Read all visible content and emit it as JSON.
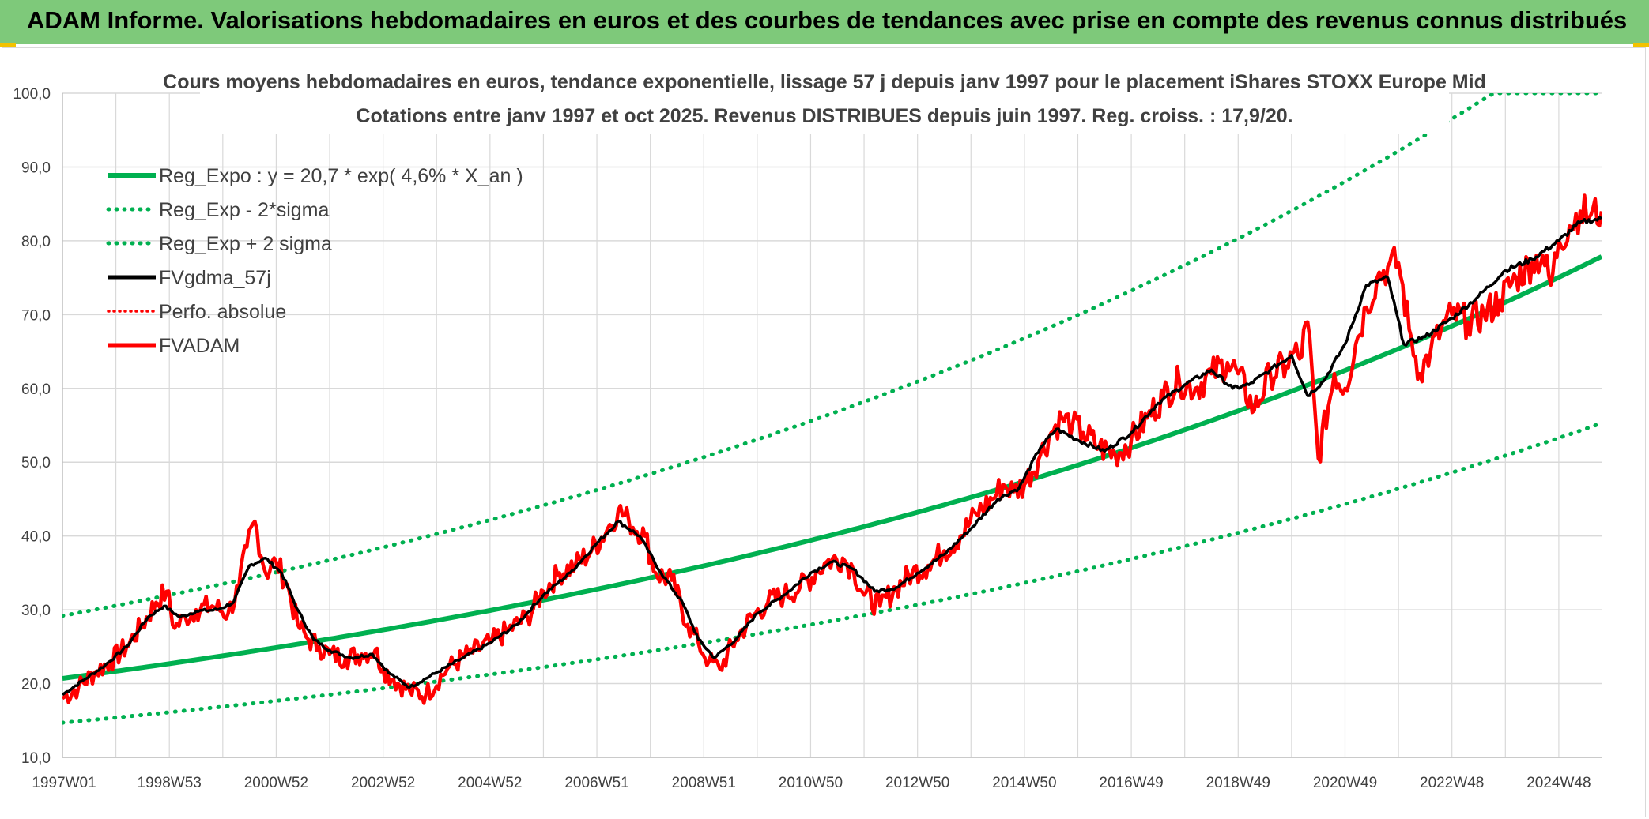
{
  "header": {
    "title": "ADAM Informe. Valorisations hebdomadaires en euros et des courbes de tendances avec prise en compte des revenus connus distribués"
  },
  "colors": {
    "header_bg": "#7ec97a",
    "trend": "#00b050",
    "fv": "#000000",
    "adam": "#ff0000",
    "grid": "#d9d9d9"
  },
  "chart_data": {
    "type": "line",
    "title": "Cours moyens hebdomadaires en euros, tendance exponentielle, lissage 57 j depuis janv 1997 pour le placement iShares STOXX Europe Mid",
    "subtitle": "Cotations entre janv 1997 et oct 2025. Revenus DISTRIBUES depuis juin 1997. Reg. croiss. : 17,9/20.",
    "ylim": [
      10,
      100
    ],
    "yticks": [
      "10,0",
      "20,0",
      "30,0",
      "40,0",
      "50,0",
      "60,0",
      "70,0",
      "80,0",
      "90,0",
      "100,0"
    ],
    "xlim": [
      1997.0,
      2025.8
    ],
    "xtick_labels": [
      "1997W01",
      "1998W53",
      "2000W52",
      "2002W52",
      "2004W52",
      "2006W51",
      "2008W51",
      "2010W50",
      "2012W50",
      "2014W50",
      "2016W49",
      "2018W49",
      "2020W49",
      "2022W48",
      "2024W48"
    ],
    "xtick_years": [
      1997,
      1999,
      2001,
      2003,
      2005,
      2007,
      2009,
      2011,
      2013,
      2015,
      2017,
      2019,
      2021,
      2023,
      2025
    ],
    "legend": [
      {
        "label": "Reg_Expo : y = 20,7 * exp( 4,6% *  X_an )",
        "style": "solid-green"
      },
      {
        "label": "Reg_Exp - 2*sigma",
        "style": "dotted-green"
      },
      {
        "label": "Reg_Exp + 2 sigma",
        "style": "dotted-green"
      },
      {
        "label": "FVgdma_57j",
        "style": "solid-black"
      },
      {
        "label": "Perfo. absolue",
        "style": "dotted-red"
      },
      {
        "label": "FVADAM",
        "style": "solid-red"
      }
    ],
    "regression": {
      "a": 20.7,
      "b": 0.046,
      "x0": 1997.0,
      "lower_factor": 0.71,
      "upper_factor": 1.41
    },
    "series": [
      {
        "name": "FVADAM",
        "x": [
          1997.0,
          1997.3,
          1997.6,
          1997.9,
          1998.2,
          1998.5,
          1998.75,
          1998.95,
          1999.1,
          1999.3,
          1999.5,
          1999.8,
          2000.1,
          2000.3,
          2000.45,
          2000.6,
          2000.8,
          2001.0,
          2001.2,
          2001.4,
          2001.6,
          2001.8,
          2002.0,
          2002.3,
          2002.6,
          2002.85,
          2003.0,
          2003.2,
          2003.5,
          2003.8,
          2004.2,
          2004.6,
          2005.0,
          2005.3,
          2005.7,
          2006.0,
          2006.3,
          2006.6,
          2006.9,
          2007.2,
          2007.4,
          2007.6,
          2007.9,
          2008.1,
          2008.4,
          2008.7,
          2008.9,
          2009.1,
          2009.3,
          2009.6,
          2009.9,
          2010.2,
          2010.5,
          2010.8,
          2011.1,
          2011.3,
          2011.6,
          2011.8,
          2012.0,
          2012.3,
          2012.6,
          2012.9,
          2013.2,
          2013.5,
          2013.8,
          2014.1,
          2014.4,
          2014.6,
          2014.8,
          2015.0,
          2015.3,
          2015.5,
          2015.7,
          2015.9,
          2016.1,
          2016.4,
          2016.7,
          2017.0,
          2017.3,
          2017.6,
          2017.9,
          2018.2,
          2018.5,
          2018.8,
          2019.0,
          2019.3,
          2019.6,
          2019.9,
          2020.05,
          2020.15,
          2020.3,
          2020.5,
          2020.8,
          2021.0,
          2021.2,
          2021.4,
          2021.6,
          2021.8,
          2022.0,
          2022.2,
          2022.4,
          2022.6,
          2022.8,
          2023.0,
          2023.3,
          2023.6,
          2023.9,
          2024.2,
          2024.5,
          2024.7,
          2024.85,
          2025.0,
          2025.2,
          2025.4,
          2025.6,
          2025.8
        ],
        "values": [
          18.0,
          19.5,
          21.5,
          23.0,
          25.0,
          28.0,
          31.0,
          32.5,
          27.5,
          29.0,
          30.0,
          30.5,
          29.5,
          33.0,
          38.5,
          42.0,
          35.0,
          36.5,
          33.5,
          28.0,
          26.0,
          25.0,
          24.0,
          23.5,
          24.0,
          24.5,
          22.0,
          20.5,
          19.0,
          18.5,
          22.0,
          24.0,
          25.5,
          27.0,
          29.0,
          32.5,
          35.0,
          36.0,
          38.0,
          41.0,
          43.5,
          42.0,
          40.0,
          35.0,
          34.0,
          28.0,
          25.5,
          23.0,
          22.0,
          26.0,
          29.0,
          31.0,
          32.0,
          33.0,
          35.0,
          36.5,
          37.0,
          35.5,
          32.0,
          30.5,
          33.0,
          35.0,
          36.0,
          38.0,
          40.0,
          43.0,
          45.0,
          47.0,
          46.0,
          47.0,
          51.0,
          54.0,
          56.0,
          55.0,
          54.0,
          52.0,
          51.0,
          53.0,
          56.0,
          59.0,
          61.0,
          60.0,
          62.0,
          63.5,
          62.0,
          57.0,
          62.0,
          63.0,
          65.0,
          64.0,
          69.0,
          50.5,
          62.0,
          60.0,
          66.0,
          71.0,
          75.0,
          76.5,
          77.0,
          68.0,
          62.0,
          65.0,
          68.0,
          70.0,
          69.0,
          70.0,
          72.0,
          75.0,
          77.0,
          78.0,
          74.0,
          80.0,
          82.0,
          84.0,
          83.5,
          84.0
        ]
      },
      {
        "name": "FVgdma_57j",
        "x": [
          1997.0,
          1997.4,
          1997.8,
          1998.2,
          1998.6,
          1998.9,
          1999.2,
          1999.5,
          1999.9,
          2000.2,
          2000.5,
          2000.8,
          2001.1,
          2001.4,
          2001.7,
          2002.0,
          2002.4,
          2002.8,
          2003.1,
          2003.5,
          2004.0,
          2004.5,
          2005.0,
          2005.5,
          2006.0,
          2006.5,
          2007.0,
          2007.4,
          2007.8,
          2008.2,
          2008.6,
          2008.9,
          2009.2,
          2009.6,
          2010.0,
          2010.5,
          2011.0,
          2011.4,
          2011.8,
          2012.2,
          2012.6,
          2013.0,
          2013.5,
          2014.0,
          2014.5,
          2014.9,
          2015.3,
          2015.6,
          2016.0,
          2016.5,
          2017.0,
          2017.5,
          2018.0,
          2018.5,
          2018.9,
          2019.2,
          2019.6,
          2020.0,
          2020.3,
          2020.6,
          2021.0,
          2021.4,
          2021.8,
          2022.1,
          2022.5,
          2023.0,
          2023.5,
          2024.0,
          2024.5,
          2025.0,
          2025.4,
          2025.8
        ],
        "values": [
          18.5,
          20.5,
          22.5,
          25.0,
          29.0,
          30.5,
          29.0,
          29.8,
          30.0,
          31.0,
          36.0,
          37.0,
          35.0,
          30.0,
          26.0,
          24.5,
          23.5,
          24.0,
          21.5,
          19.5,
          21.5,
          23.5,
          25.5,
          28.0,
          32.0,
          35.0,
          39.0,
          42.0,
          40.0,
          35.0,
          31.0,
          26.0,
          23.5,
          26.0,
          29.5,
          32.0,
          35.0,
          36.5,
          35.5,
          32.5,
          33.0,
          35.0,
          37.5,
          41.0,
          45.0,
          46.5,
          52.0,
          54.5,
          53.0,
          51.5,
          54.0,
          58.0,
          60.5,
          62.5,
          60.0,
          60.5,
          62.5,
          64.5,
          59.0,
          61.0,
          66.0,
          74.0,
          75.0,
          66.0,
          67.0,
          69.5,
          72.5,
          76.0,
          77.5,
          80.0,
          82.5,
          83.0
        ]
      }
    ]
  }
}
